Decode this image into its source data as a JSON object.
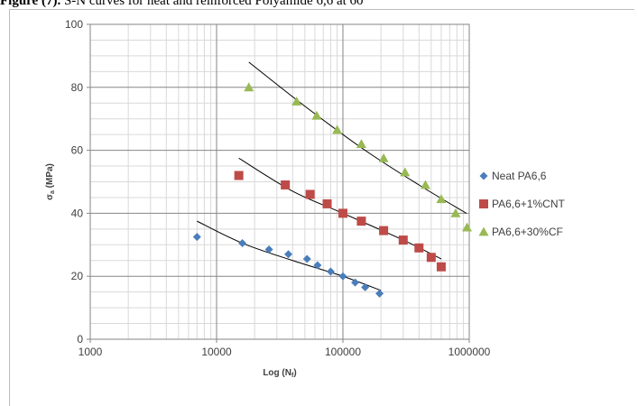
{
  "caption": {
    "bold_part": "Figure (7).",
    "rest": " S-N curves for neat and reinforced Polyamide 6,6 at 60"
  },
  "chart_data": {
    "type": "scatter",
    "title": "",
    "xlabel": "Log (Nf)",
    "xlabel_main": "Log (N",
    "xlabel_sub": "f",
    "xlabel_end": ")",
    "ylabel_main": "σ",
    "ylabel_sub": "a",
    "ylabel_end": " (MPa)",
    "x_scale": "log",
    "xlim": [
      1000,
      1000000
    ],
    "ylim": [
      0,
      100
    ],
    "x_ticks": [
      1000,
      10000,
      100000,
      1000000
    ],
    "x_tick_labels": [
      "1000",
      "10000",
      "100000",
      "1000000"
    ],
    "y_ticks": [
      0,
      20,
      40,
      60,
      80,
      100
    ],
    "y_tick_labels": [
      "0",
      "20",
      "40",
      "60",
      "80",
      "100"
    ],
    "grid": true,
    "legend_position": "right",
    "series": [
      {
        "name": "Neat PA6,6",
        "marker": "diamond",
        "color": "#4a7ebb",
        "points": [
          [
            7000,
            32.5
          ],
          [
            16000,
            30.5
          ],
          [
            26000,
            28.5
          ],
          [
            37000,
            27
          ],
          [
            52000,
            25.5
          ],
          [
            63000,
            23.5
          ],
          [
            80000,
            21.5
          ],
          [
            100000,
            20
          ],
          [
            125000,
            18
          ],
          [
            150000,
            16.5
          ],
          [
            195000,
            14.5
          ]
        ],
        "trend": [
          [
            7000,
            37.5
          ],
          [
            16000,
            30.5
          ],
          [
            40000,
            25
          ],
          [
            100000,
            20
          ],
          [
            200000,
            15.5
          ]
        ]
      },
      {
        "name": "PA6,6+1%CNT",
        "marker": "square",
        "color": "#be4b48",
        "points": [
          [
            15000,
            52
          ],
          [
            35000,
            49
          ],
          [
            55000,
            46
          ],
          [
            75000,
            43
          ],
          [
            100000,
            40
          ],
          [
            140000,
            37.5
          ],
          [
            210000,
            34.5
          ],
          [
            300000,
            31.5
          ],
          [
            400000,
            29
          ],
          [
            500000,
            26
          ],
          [
            600000,
            23
          ]
        ],
        "trend": [
          [
            15000,
            57.5
          ],
          [
            40000,
            47
          ],
          [
            100000,
            40
          ],
          [
            300000,
            31.5
          ],
          [
            600000,
            25.5
          ]
        ]
      },
      {
        "name": "PA6,6+30%CF",
        "marker": "triangle",
        "color": "#98b954",
        "points": [
          [
            18000,
            80
          ],
          [
            43000,
            75.5
          ],
          [
            62000,
            71
          ],
          [
            90000,
            66.5
          ],
          [
            140000,
            62
          ],
          [
            210000,
            57.5
          ],
          [
            310000,
            53
          ],
          [
            450000,
            49
          ],
          [
            600000,
            44.5
          ],
          [
            780000,
            40
          ],
          [
            960000,
            35.5
          ]
        ],
        "trend": [
          [
            18000,
            88
          ],
          [
            50000,
            74
          ],
          [
            150000,
            60
          ],
          [
            400000,
            49
          ],
          [
            950000,
            40
          ]
        ]
      }
    ]
  }
}
